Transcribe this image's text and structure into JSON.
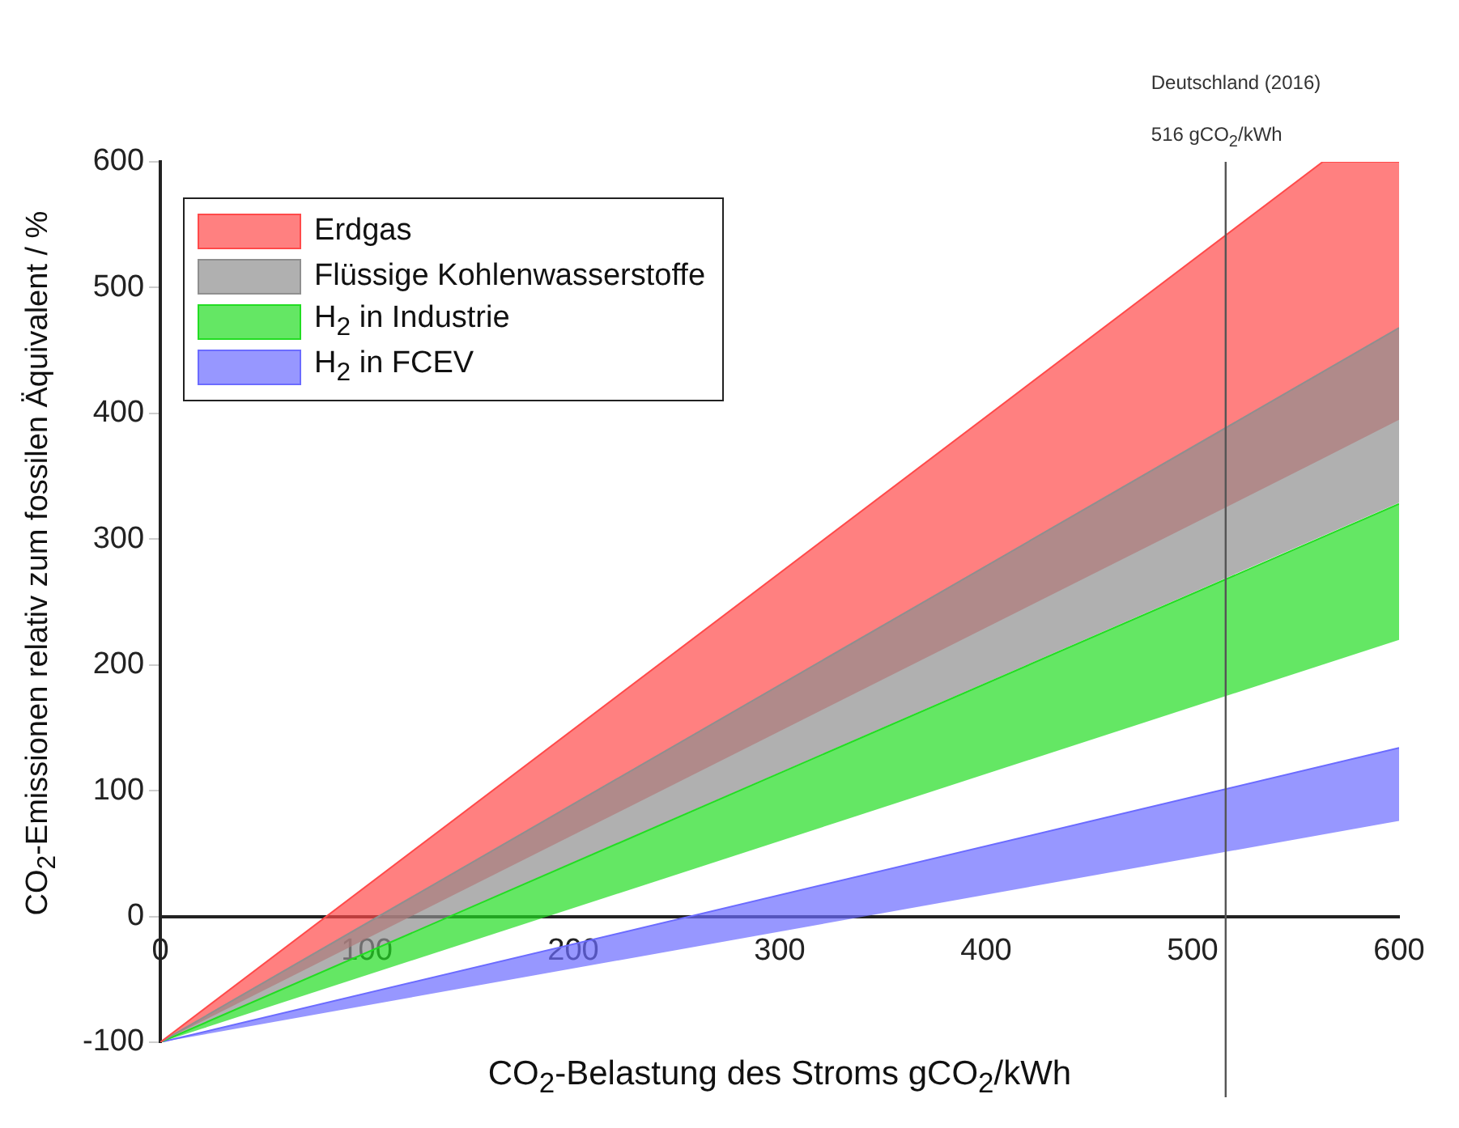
{
  "chart_data": {
    "type": "line",
    "xlabel": "CO$_{2}$-Belastung des Stroms gCO$_{2}$/kWh",
    "ylabel": "CO$_{2}$-Emissionen relativ zum fossilen Äquivalent / %",
    "xlim": [
      0,
      600
    ],
    "ylim": [
      -100,
      600
    ],
    "xticks": [
      0,
      100,
      200,
      300,
      400,
      500,
      600
    ],
    "yticks": [
      -100,
      0,
      100,
      200,
      300,
      400,
      500,
      600
    ],
    "grid": false,
    "legend": "top left",
    "series": [
      {
        "name": "Erdgas",
        "color": "#ff4a4a",
        "x": [
          0,
          563,
          600
        ],
        "values": [
          -100,
          600,
          600
        ],
        "lower": [
          -100,
          364,
          395
        ],
        "upper": [
          -100,
          600,
          600
        ]
      },
      {
        "name": "Flüssige Kohlenwasserstoffe",
        "color": "#8f8f8f",
        "x": [
          0,
          600
        ],
        "values": [
          -100,
          468
        ],
        "lower": [
          -100,
          329
        ],
        "upper": [
          -100,
          468
        ]
      },
      {
        "name": "H$_{2}$ in Industrie",
        "color": "#22dd22",
        "x": [
          0,
          600
        ],
        "values": [
          -100,
          328
        ],
        "lower": [
          -100,
          220
        ],
        "upper": [
          -100,
          328
        ]
      },
      {
        "name": "H$_{2}$ in FCEV",
        "color": "#6b6bff",
        "x": [
          0,
          600
        ],
        "values": [
          -100,
          134
        ],
        "lower": [
          -100,
          76
        ],
        "upper": [
          -100,
          134
        ]
      }
    ],
    "ref_lines": [
      {
        "axis": "x",
        "value": 516,
        "label": "516 gCO$_{2}$/kWh",
        "color": "#555555"
      }
    ],
    "annotations": [
      "Deutschland (2016)"
    ]
  }
}
